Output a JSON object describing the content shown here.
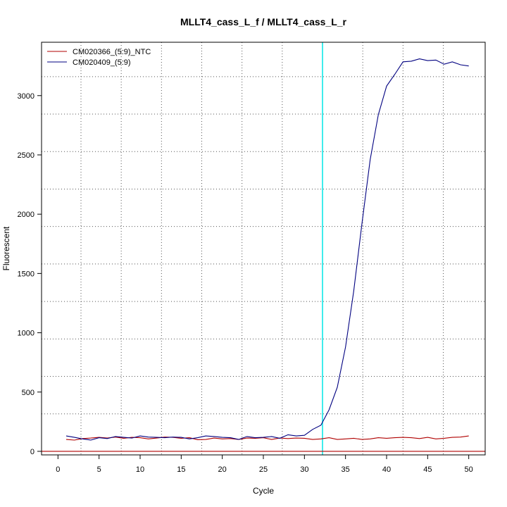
{
  "chart_data": {
    "type": "line",
    "title": "MLLT4_cass_L_f / MLLT4_cass_L_r",
    "xlabel": "Cycle",
    "ylabel": "Fluorescent",
    "xlim": [
      -2,
      52
    ],
    "ylim": [
      -30,
      3450
    ],
    "x_ticks": [
      0,
      5,
      10,
      15,
      20,
      25,
      30,
      35,
      40,
      45,
      50
    ],
    "y_ticks": [
      0,
      500,
      1000,
      1500,
      2000,
      2500,
      3000
    ],
    "x_grid": [
      2.8,
      7.7,
      12.6,
      17.5,
      22.4,
      27.3,
      32.2,
      37.1,
      42.0,
      46.9
    ],
    "y_grid": [
      0,
      316,
      632,
      948,
      1264,
      1580,
      1896,
      2212,
      2528,
      2844,
      3160
    ],
    "grid": true,
    "legend_position": "top-left",
    "threshold": {
      "x": 32.2,
      "color": "#00e5e5"
    },
    "baseline": {
      "y": 0,
      "color": "#b00000"
    },
    "series": [
      {
        "name": "CM020366_(5:9)_NTC",
        "color": "#b00000",
        "x": [
          1,
          2,
          3,
          4,
          5,
          6,
          7,
          8,
          9,
          10,
          11,
          12,
          13,
          14,
          15,
          16,
          17,
          18,
          19,
          20,
          21,
          22,
          23,
          24,
          25,
          26,
          27,
          28,
          29,
          30,
          31,
          32,
          33,
          34,
          35,
          36,
          37,
          38,
          39,
          40,
          41,
          42,
          43,
          44,
          45,
          46,
          47,
          48,
          49,
          50
        ],
        "y": [
          100,
          95,
          108,
          112,
          118,
          112,
          120,
          110,
          118,
          115,
          105,
          112,
          120,
          118,
          110,
          115,
          98,
          100,
          112,
          105,
          108,
          100,
          112,
          110,
          115,
          100,
          112,
          108,
          112,
          110,
          100,
          105,
          115,
          100,
          105,
          110,
          100,
          105,
          115,
          110,
          115,
          118,
          115,
          108,
          118,
          105,
          110,
          118,
          120,
          130
        ]
      },
      {
        "name": "CM020409_(5:9)",
        "color": "#000080",
        "x": [
          1,
          2,
          3,
          4,
          5,
          6,
          7,
          8,
          9,
          10,
          11,
          12,
          13,
          14,
          15,
          16,
          17,
          18,
          19,
          20,
          21,
          22,
          23,
          24,
          25,
          26,
          27,
          28,
          29,
          30,
          31,
          32,
          33,
          34,
          35,
          36,
          37,
          38,
          39,
          40,
          41,
          42,
          43,
          44,
          45,
          46,
          47,
          48,
          49,
          50
        ],
        "y": [
          130,
          118,
          105,
          95,
          115,
          108,
          125,
          118,
          112,
          130,
          120,
          118,
          115,
          120,
          118,
          105,
          115,
          130,
          125,
          118,
          115,
          100,
          125,
          115,
          118,
          125,
          110,
          140,
          130,
          135,
          185,
          220,
          350,
          540,
          880,
          1350,
          1920,
          2460,
          2840,
          3080,
          3180,
          3285,
          3290,
          3310,
          3295,
          3300,
          3265,
          3285,
          3260,
          3250
        ]
      }
    ]
  }
}
